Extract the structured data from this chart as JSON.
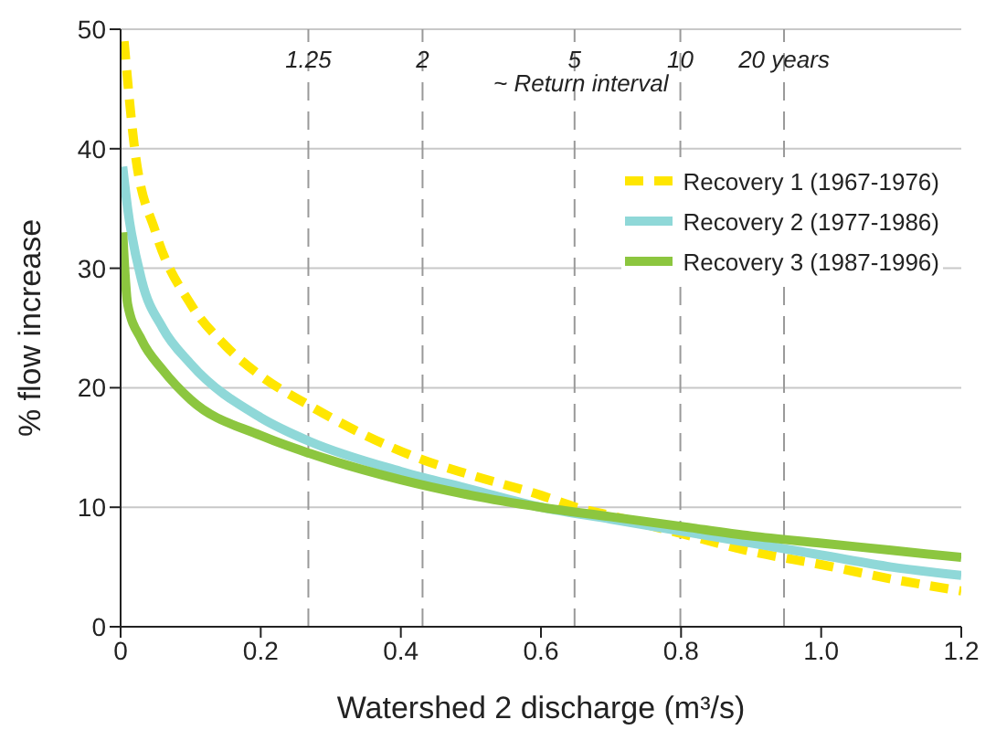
{
  "chart_data": {
    "type": "line",
    "xlabel": "Watershed 2 discharge (m³/s)",
    "ylabel": "% flow increase",
    "annotations": [
      "~ Return interval",
      {
        "text": "1.25",
        "x": 0.268,
        "y": 47.5
      },
      {
        "text": "2",
        "x": 0.431,
        "y": 47.5
      },
      {
        "text": "5",
        "x": 0.648,
        "y": 47.5
      },
      {
        "text": "10",
        "x": 0.799,
        "y": 47.5
      },
      {
        "text": "20 years",
        "x": 0.947,
        "y": 47.5
      }
    ],
    "xlim": [
      0,
      1.2
    ],
    "xticks": [
      0,
      0.2,
      0.4,
      0.6,
      0.8,
      {
        "value": 1,
        "label": "1.0"
      },
      1.2
    ],
    "ylim": [
      0,
      50
    ],
    "yticks": [
      0,
      10,
      20,
      30,
      40,
      50
    ],
    "grid": "y",
    "legend": "top right",
    "marker": "none",
    "ref_lines": [
      {
        "axis": "x",
        "value": 0.268,
        "line_style": "dashed",
        "color": "#999999"
      },
      {
        "axis": "x",
        "value": 0.431,
        "line_style": "dashed",
        "color": "#999999"
      },
      {
        "axis": "x",
        "value": 0.648,
        "line_style": "dashed",
        "color": "#999999"
      },
      {
        "axis": "x",
        "value": 0.799,
        "line_style": "dashed",
        "color": "#999999"
      },
      {
        "axis": "x",
        "value": 0.947,
        "line_style": "dashed",
        "color": "#999999"
      }
    ],
    "series": [
      {
        "name": "Recovery 1 (1967-1976)",
        "color": "#ffe600",
        "line_style": "dashed",
        "x": [
          0.005,
          0.02,
          0.05,
          0.1,
          0.15,
          0.2,
          0.27,
          0.35,
          0.43,
          0.5,
          0.6,
          0.65,
          0.7,
          0.8,
          0.9,
          1.0,
          1.1,
          1.2
        ],
        "values": [
          49,
          40,
          33,
          27,
          23.5,
          21,
          18.5,
          16,
          14,
          12.7,
          11,
          10,
          9.3,
          7.8,
          6.3,
          5.2,
          4,
          3
        ]
      },
      {
        "name": "Recovery 2 (1977-1986)",
        "color": "#8fd8d8",
        "x": [
          0.003,
          0.01,
          0.03,
          0.06,
          0.1,
          0.2,
          0.27,
          0.4,
          0.5,
          0.6,
          0.7,
          0.8,
          0.9,
          1.0,
          1.1,
          1.2
        ],
        "values": [
          38.5,
          35,
          29,
          25,
          22,
          17.5,
          15.5,
          13,
          11.5,
          10,
          9,
          8,
          7,
          6,
          5,
          4.3
        ]
      },
      {
        "name": "Recovery 3 (1987-1996)",
        "color": "#8cc63f",
        "x": [
          0.003,
          0.01,
          0.03,
          0.06,
          0.1,
          0.2,
          0.27,
          0.4,
          0.5,
          0.6,
          0.7,
          0.8,
          0.9,
          1.0,
          1.1,
          1.2
        ],
        "values": [
          33,
          27,
          24,
          21.5,
          19,
          16,
          14.5,
          12.3,
          11,
          10,
          9.2,
          8.4,
          7.6,
          7,
          6.4,
          5.8
        ]
      }
    ]
  }
}
